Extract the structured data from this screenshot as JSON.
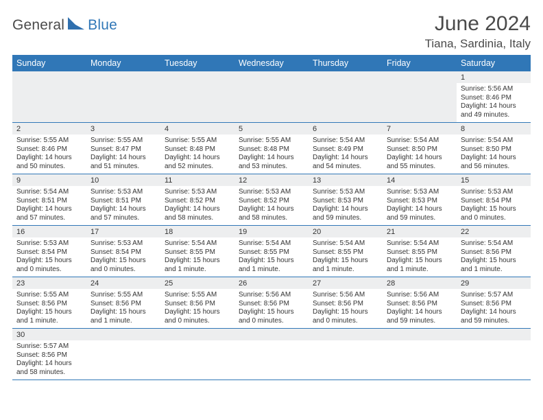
{
  "brand": {
    "a": "General",
    "b": "Blue",
    "mark_color": "#2f6fae"
  },
  "header": {
    "title": "June 2024",
    "location": "Tiana, Sardinia, Italy"
  },
  "colors": {
    "header_bg": "#3077b7",
    "header_text": "#ffffff",
    "daynum_bg": "#edeeef",
    "rule": "#3077b7",
    "text": "#333333",
    "title": "#4a4a4a"
  },
  "calendar": {
    "day_labels": [
      "Sunday",
      "Monday",
      "Tuesday",
      "Wednesday",
      "Thursday",
      "Friday",
      "Saturday"
    ],
    "weeks": [
      {
        "nums": [
          "",
          "",
          "",
          "",
          "",
          "",
          "1"
        ],
        "cells": [
          null,
          null,
          null,
          null,
          null,
          null,
          {
            "sunrise": "Sunrise: 5:56 AM",
            "sunset": "Sunset: 8:46 PM",
            "d1": "Daylight: 14 hours",
            "d2": "and 49 minutes."
          }
        ]
      },
      {
        "nums": [
          "2",
          "3",
          "4",
          "5",
          "6",
          "7",
          "8"
        ],
        "cells": [
          {
            "sunrise": "Sunrise: 5:55 AM",
            "sunset": "Sunset: 8:46 PM",
            "d1": "Daylight: 14 hours",
            "d2": "and 50 minutes."
          },
          {
            "sunrise": "Sunrise: 5:55 AM",
            "sunset": "Sunset: 8:47 PM",
            "d1": "Daylight: 14 hours",
            "d2": "and 51 minutes."
          },
          {
            "sunrise": "Sunrise: 5:55 AM",
            "sunset": "Sunset: 8:48 PM",
            "d1": "Daylight: 14 hours",
            "d2": "and 52 minutes."
          },
          {
            "sunrise": "Sunrise: 5:55 AM",
            "sunset": "Sunset: 8:48 PM",
            "d1": "Daylight: 14 hours",
            "d2": "and 53 minutes."
          },
          {
            "sunrise": "Sunrise: 5:54 AM",
            "sunset": "Sunset: 8:49 PM",
            "d1": "Daylight: 14 hours",
            "d2": "and 54 minutes."
          },
          {
            "sunrise": "Sunrise: 5:54 AM",
            "sunset": "Sunset: 8:50 PM",
            "d1": "Daylight: 14 hours",
            "d2": "and 55 minutes."
          },
          {
            "sunrise": "Sunrise: 5:54 AM",
            "sunset": "Sunset: 8:50 PM",
            "d1": "Daylight: 14 hours",
            "d2": "and 56 minutes."
          }
        ]
      },
      {
        "nums": [
          "9",
          "10",
          "11",
          "12",
          "13",
          "14",
          "15"
        ],
        "cells": [
          {
            "sunrise": "Sunrise: 5:54 AM",
            "sunset": "Sunset: 8:51 PM",
            "d1": "Daylight: 14 hours",
            "d2": "and 57 minutes."
          },
          {
            "sunrise": "Sunrise: 5:53 AM",
            "sunset": "Sunset: 8:51 PM",
            "d1": "Daylight: 14 hours",
            "d2": "and 57 minutes."
          },
          {
            "sunrise": "Sunrise: 5:53 AM",
            "sunset": "Sunset: 8:52 PM",
            "d1": "Daylight: 14 hours",
            "d2": "and 58 minutes."
          },
          {
            "sunrise": "Sunrise: 5:53 AM",
            "sunset": "Sunset: 8:52 PM",
            "d1": "Daylight: 14 hours",
            "d2": "and 58 minutes."
          },
          {
            "sunrise": "Sunrise: 5:53 AM",
            "sunset": "Sunset: 8:53 PM",
            "d1": "Daylight: 14 hours",
            "d2": "and 59 minutes."
          },
          {
            "sunrise": "Sunrise: 5:53 AM",
            "sunset": "Sunset: 8:53 PM",
            "d1": "Daylight: 14 hours",
            "d2": "and 59 minutes."
          },
          {
            "sunrise": "Sunrise: 5:53 AM",
            "sunset": "Sunset: 8:54 PM",
            "d1": "Daylight: 15 hours",
            "d2": "and 0 minutes."
          }
        ]
      },
      {
        "nums": [
          "16",
          "17",
          "18",
          "19",
          "20",
          "21",
          "22"
        ],
        "cells": [
          {
            "sunrise": "Sunrise: 5:53 AM",
            "sunset": "Sunset: 8:54 PM",
            "d1": "Daylight: 15 hours",
            "d2": "and 0 minutes."
          },
          {
            "sunrise": "Sunrise: 5:53 AM",
            "sunset": "Sunset: 8:54 PM",
            "d1": "Daylight: 15 hours",
            "d2": "and 0 minutes."
          },
          {
            "sunrise": "Sunrise: 5:54 AM",
            "sunset": "Sunset: 8:55 PM",
            "d1": "Daylight: 15 hours",
            "d2": "and 1 minute."
          },
          {
            "sunrise": "Sunrise: 5:54 AM",
            "sunset": "Sunset: 8:55 PM",
            "d1": "Daylight: 15 hours",
            "d2": "and 1 minute."
          },
          {
            "sunrise": "Sunrise: 5:54 AM",
            "sunset": "Sunset: 8:55 PM",
            "d1": "Daylight: 15 hours",
            "d2": "and 1 minute."
          },
          {
            "sunrise": "Sunrise: 5:54 AM",
            "sunset": "Sunset: 8:55 PM",
            "d1": "Daylight: 15 hours",
            "d2": "and 1 minute."
          },
          {
            "sunrise": "Sunrise: 5:54 AM",
            "sunset": "Sunset: 8:56 PM",
            "d1": "Daylight: 15 hours",
            "d2": "and 1 minute."
          }
        ]
      },
      {
        "nums": [
          "23",
          "24",
          "25",
          "26",
          "27",
          "28",
          "29"
        ],
        "cells": [
          {
            "sunrise": "Sunrise: 5:55 AM",
            "sunset": "Sunset: 8:56 PM",
            "d1": "Daylight: 15 hours",
            "d2": "and 1 minute."
          },
          {
            "sunrise": "Sunrise: 5:55 AM",
            "sunset": "Sunset: 8:56 PM",
            "d1": "Daylight: 15 hours",
            "d2": "and 1 minute."
          },
          {
            "sunrise": "Sunrise: 5:55 AM",
            "sunset": "Sunset: 8:56 PM",
            "d1": "Daylight: 15 hours",
            "d2": "and 0 minutes."
          },
          {
            "sunrise": "Sunrise: 5:56 AM",
            "sunset": "Sunset: 8:56 PM",
            "d1": "Daylight: 15 hours",
            "d2": "and 0 minutes."
          },
          {
            "sunrise": "Sunrise: 5:56 AM",
            "sunset": "Sunset: 8:56 PM",
            "d1": "Daylight: 15 hours",
            "d2": "and 0 minutes."
          },
          {
            "sunrise": "Sunrise: 5:56 AM",
            "sunset": "Sunset: 8:56 PM",
            "d1": "Daylight: 14 hours",
            "d2": "and 59 minutes."
          },
          {
            "sunrise": "Sunrise: 5:57 AM",
            "sunset": "Sunset: 8:56 PM",
            "d1": "Daylight: 14 hours",
            "d2": "and 59 minutes."
          }
        ]
      },
      {
        "nums": [
          "30",
          "",
          "",
          "",
          "",
          "",
          ""
        ],
        "cells": [
          {
            "sunrise": "Sunrise: 5:57 AM",
            "sunset": "Sunset: 8:56 PM",
            "d1": "Daylight: 14 hours",
            "d2": "and 58 minutes."
          },
          null,
          null,
          null,
          null,
          null,
          null
        ]
      }
    ]
  }
}
